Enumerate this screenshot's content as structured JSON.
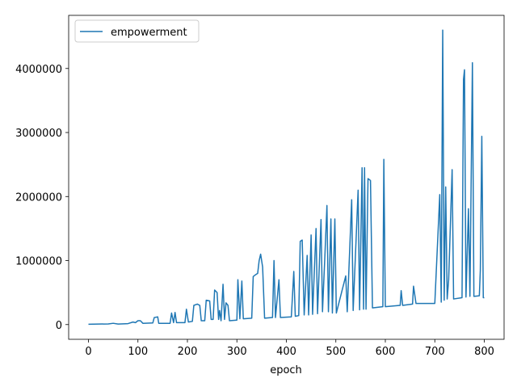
{
  "chart_data": {
    "type": "line",
    "xlabel": "epoch",
    "x": [
      0,
      20,
      40,
      50,
      60,
      80,
      90,
      95,
      100,
      105,
      110,
      130,
      133,
      140,
      142,
      165,
      168,
      172,
      175,
      178,
      195,
      198,
      202,
      210,
      213,
      220,
      225,
      228,
      235,
      238,
      245,
      248,
      252,
      255,
      260,
      263,
      265,
      268,
      272,
      275,
      278,
      282,
      285,
      300,
      302,
      306,
      310,
      313,
      330,
      333,
      338,
      342,
      345,
      348,
      352,
      356,
      372,
      375,
      378,
      385,
      388,
      410,
      412,
      415,
      418,
      425,
      428,
      432,
      436,
      442,
      445,
      450,
      453,
      460,
      463,
      470,
      473,
      478,
      482,
      485,
      490,
      493,
      498,
      501,
      520,
      523,
      532,
      535,
      545,
      548,
      553,
      556,
      558,
      561,
      565,
      570,
      574,
      595,
      597,
      600,
      630,
      632,
      635,
      655,
      657,
      662,
      700,
      710,
      713,
      716,
      719,
      722,
      725,
      728,
      735,
      738,
      755,
      758,
      760,
      763,
      768,
      771,
      776,
      779,
      790,
      792,
      795,
      798,
      800
    ],
    "series": [
      {
        "name": "empowerment",
        "color": "#1f77b4",
        "values": [
          5000,
          8000,
          10000,
          20000,
          8000,
          15000,
          40000,
          30000,
          60000,
          60000,
          20000,
          25000,
          110000,
          120000,
          20000,
          20000,
          180000,
          30000,
          190000,
          30000,
          30000,
          240000,
          40000,
          50000,
          300000,
          320000,
          300000,
          60000,
          60000,
          380000,
          370000,
          80000,
          80000,
          540000,
          500000,
          80000,
          220000,
          60000,
          630000,
          80000,
          340000,
          300000,
          60000,
          70000,
          700000,
          90000,
          680000,
          90000,
          100000,
          750000,
          780000,
          800000,
          1000000,
          1100000,
          900000,
          100000,
          110000,
          1000000,
          110000,
          700000,
          110000,
          120000,
          400000,
          830000,
          130000,
          140000,
          1300000,
          1320000,
          150000,
          1080000,
          150000,
          1400000,
          160000,
          1500000,
          170000,
          1640000,
          200000,
          1100000,
          1860000,
          200000,
          1650000,
          180000,
          1650000,
          180000,
          760000,
          200000,
          1950000,
          220000,
          2100000,
          230000,
          2450000,
          240000,
          2450000,
          240000,
          2280000,
          2250000,
          260000,
          280000,
          2580000,
          280000,
          300000,
          530000,
          300000,
          320000,
          600000,
          330000,
          330000,
          2030000,
          350000,
          4600000,
          380000,
          2150000,
          400000,
          700000,
          2420000,
          400000,
          420000,
          3830000,
          3980000,
          430000,
          1810000,
          440000,
          4090000,
          440000,
          450000,
          850000,
          2940000,
          420000,
          420000
        ]
      }
    ],
    "xlim": [
      -40,
      840
    ],
    "xticks": [
      0,
      100,
      200,
      300,
      400,
      500,
      600,
      700,
      800
    ],
    "ylim": [
      -230000,
      4830000
    ],
    "yticks": [
      0,
      1000000,
      2000000,
      3000000,
      4000000
    ],
    "legend": "upper left"
  }
}
